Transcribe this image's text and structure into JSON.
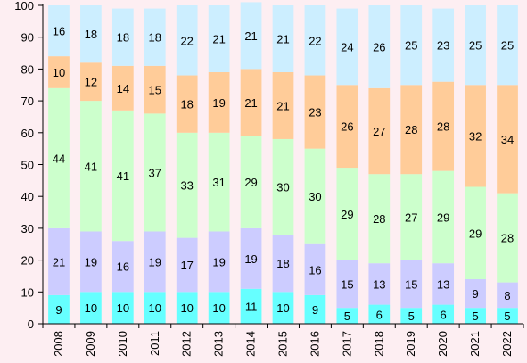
{
  "chart_data": {
    "type": "bar",
    "stacked": true,
    "title": "",
    "xlabel": "",
    "ylabel": "",
    "ylim": [
      0,
      100
    ],
    "yticks": [
      0,
      10,
      20,
      30,
      40,
      50,
      60,
      70,
      80,
      90,
      100
    ],
    "grid": false,
    "legend": "none",
    "categories": [
      "2008",
      "2009",
      "2010",
      "2011",
      "2012",
      "2013",
      "2014",
      "2015",
      "2016",
      "2017",
      "2018",
      "2019",
      "2020",
      "2021",
      "2022"
    ],
    "series": [
      {
        "color": "#66ffff",
        "values": [
          9,
          10,
          10,
          10,
          10,
          10,
          11,
          10,
          9,
          5,
          6,
          5,
          6,
          5,
          5
        ]
      },
      {
        "color": "#ccccff",
        "values": [
          21,
          19,
          16,
          19,
          17,
          19,
          19,
          18,
          16,
          15,
          13,
          15,
          13,
          9,
          8
        ]
      },
      {
        "color": "#ccffcc",
        "values": [
          44,
          41,
          41,
          37,
          33,
          31,
          29,
          30,
          30,
          29,
          28,
          27,
          29,
          29,
          28
        ]
      },
      {
        "color": "#ffcc99",
        "values": [
          10,
          12,
          14,
          15,
          18,
          19,
          21,
          21,
          23,
          26,
          27,
          28,
          28,
          32,
          34
        ]
      },
      {
        "color": "#cceeff",
        "values": [
          16,
          18,
          18,
          18,
          22,
          21,
          21,
          21,
          22,
          24,
          26,
          25,
          23,
          25,
          25
        ]
      }
    ]
  }
}
